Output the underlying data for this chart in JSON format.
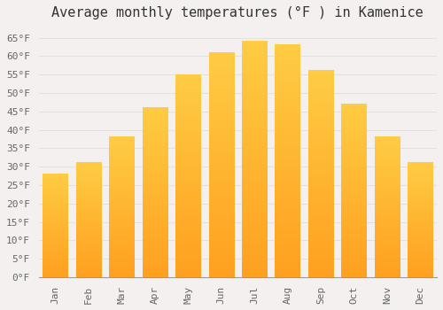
{
  "title": "Average monthly temperatures (°F ) in Kamenice",
  "months": [
    "Jan",
    "Feb",
    "Mar",
    "Apr",
    "May",
    "Jun",
    "Jul",
    "Aug",
    "Sep",
    "Oct",
    "Nov",
    "Dec"
  ],
  "values": [
    28,
    31,
    38,
    46,
    55,
    61,
    64,
    63,
    56,
    47,
    38,
    31
  ],
  "bar_color_top": "#FFCC44",
  "bar_color_bottom": "#FFA020",
  "background_color": "#F5F0F0",
  "plot_bg_color": "#F5F0F0",
  "grid_color": "#DDDDDD",
  "title_color": "#333333",
  "tick_color": "#666666",
  "ylim": [
    0,
    68
  ],
  "yticks": [
    0,
    5,
    10,
    15,
    20,
    25,
    30,
    35,
    40,
    45,
    50,
    55,
    60,
    65
  ],
  "title_fontsize": 11,
  "tick_fontsize": 8,
  "bar_width": 0.75
}
